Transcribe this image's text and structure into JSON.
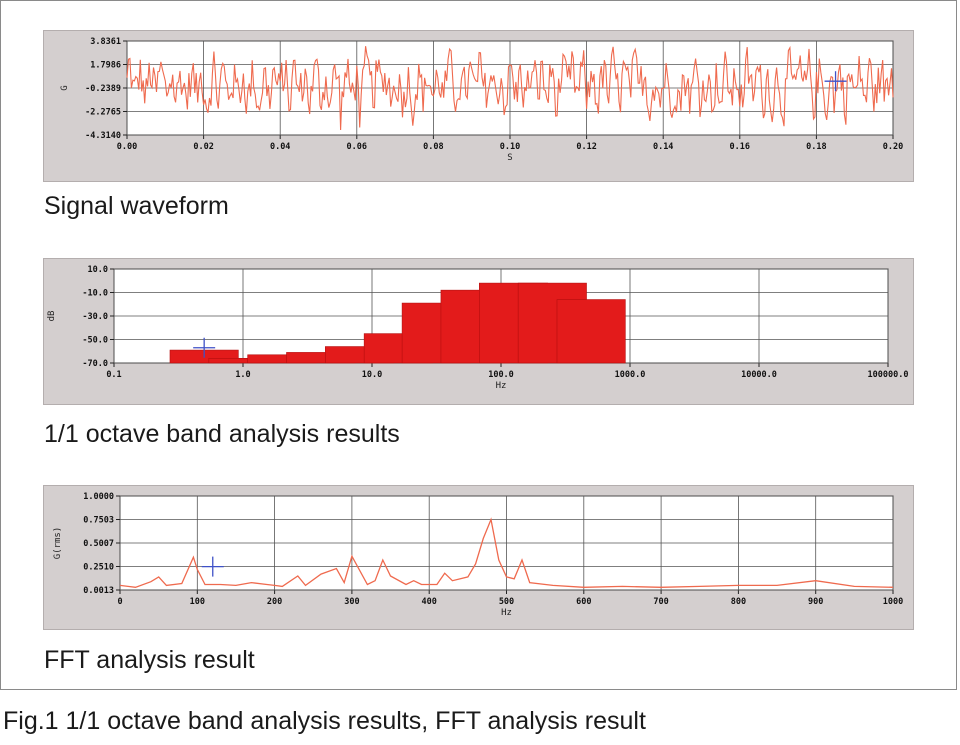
{
  "figure_caption": "Fig.1  1/1 octave band analysis results, FFT analysis result",
  "colors": {
    "panel_bg": "#d4cfcf",
    "plot_bg": "#ffffff",
    "grid": "#555555",
    "signal_line": "#ef6a4e",
    "bar_fill": "#e31b1b",
    "cursor": "#3f51c7"
  },
  "chart_data": [
    {
      "type": "line",
      "caption": "Signal waveform",
      "xlabel": "S",
      "ylabel": "G",
      "xlim": [
        0,
        0.2
      ],
      "ylim": [
        -4.314,
        3.8361
      ],
      "x_ticks": [
        "0.00",
        "0.02",
        "0.04",
        "0.06",
        "0.08",
        "0.10",
        "0.12",
        "0.14",
        "0.16",
        "0.18",
        "0.20"
      ],
      "y_ticks": [
        "3.8361",
        "1.7986",
        "-0.2389",
        "-2.2765",
        "-4.3140"
      ],
      "grid": true,
      "description": "random vibration signal, amplitude mostly within about ±2.5 G",
      "cursor": {
        "x": 0.185,
        "y": 0.35
      }
    },
    {
      "type": "bar",
      "caption": "1/1 octave band analysis results",
      "xlabel": "Hz",
      "ylabel": "dB",
      "x_scale": "log",
      "xlim": [
        0.1,
        100000
      ],
      "ylim": [
        -70,
        10
      ],
      "x_ticks": [
        "0.1",
        "1.0",
        "10.0",
        "100.0",
        "1000.0",
        "10000.0",
        "100000.0"
      ],
      "y_ticks": [
        "10.0",
        "-10.0",
        "-30.0",
        "-50.0",
        "-70.0"
      ],
      "grid": true,
      "categories": [
        0.5,
        1,
        2,
        4,
        8,
        16,
        31.5,
        63,
        125,
        250,
        500
      ],
      "values": [
        -59,
        -66,
        -63,
        -61,
        -56,
        -45,
        -19,
        -8,
        -2,
        -2,
        -16
      ],
      "cursor": {
        "x": 0.5,
        "y": -57
      }
    },
    {
      "type": "line",
      "caption": "FFT analysis result",
      "xlabel": "Hz",
      "ylabel": "G(rms)",
      "xlim": [
        0,
        1000
      ],
      "ylim": [
        0.0013,
        1.0
      ],
      "x_ticks": [
        "0",
        "100",
        "200",
        "300",
        "400",
        "500",
        "600",
        "700",
        "800",
        "900",
        "1000"
      ],
      "y_ticks": [
        "1.0000",
        "0.7503",
        "0.5007",
        "0.2510",
        "0.0013"
      ],
      "grid": true,
      "x": [
        0,
        20,
        40,
        50,
        60,
        80,
        95,
        100,
        110,
        130,
        150,
        170,
        190,
        200,
        210,
        230,
        240,
        260,
        280,
        290,
        300,
        320,
        330,
        340,
        350,
        370,
        380,
        390,
        410,
        420,
        430,
        450,
        460,
        470,
        480,
        490,
        500,
        510,
        520,
        530,
        560,
        600,
        650,
        700,
        750,
        800,
        850,
        900,
        950,
        1000
      ],
      "values": [
        0.05,
        0.03,
        0.09,
        0.14,
        0.05,
        0.07,
        0.35,
        0.22,
        0.06,
        0.06,
        0.05,
        0.08,
        0.06,
        0.05,
        0.04,
        0.15,
        0.05,
        0.17,
        0.23,
        0.08,
        0.36,
        0.06,
        0.1,
        0.32,
        0.15,
        0.06,
        0.1,
        0.06,
        0.06,
        0.18,
        0.1,
        0.14,
        0.28,
        0.55,
        0.75,
        0.32,
        0.14,
        0.12,
        0.32,
        0.08,
        0.05,
        0.03,
        0.04,
        0.03,
        0.04,
        0.05,
        0.05,
        0.1,
        0.04,
        0.03
      ],
      "cursor": {
        "x": 120,
        "y": 0.25
      }
    }
  ]
}
